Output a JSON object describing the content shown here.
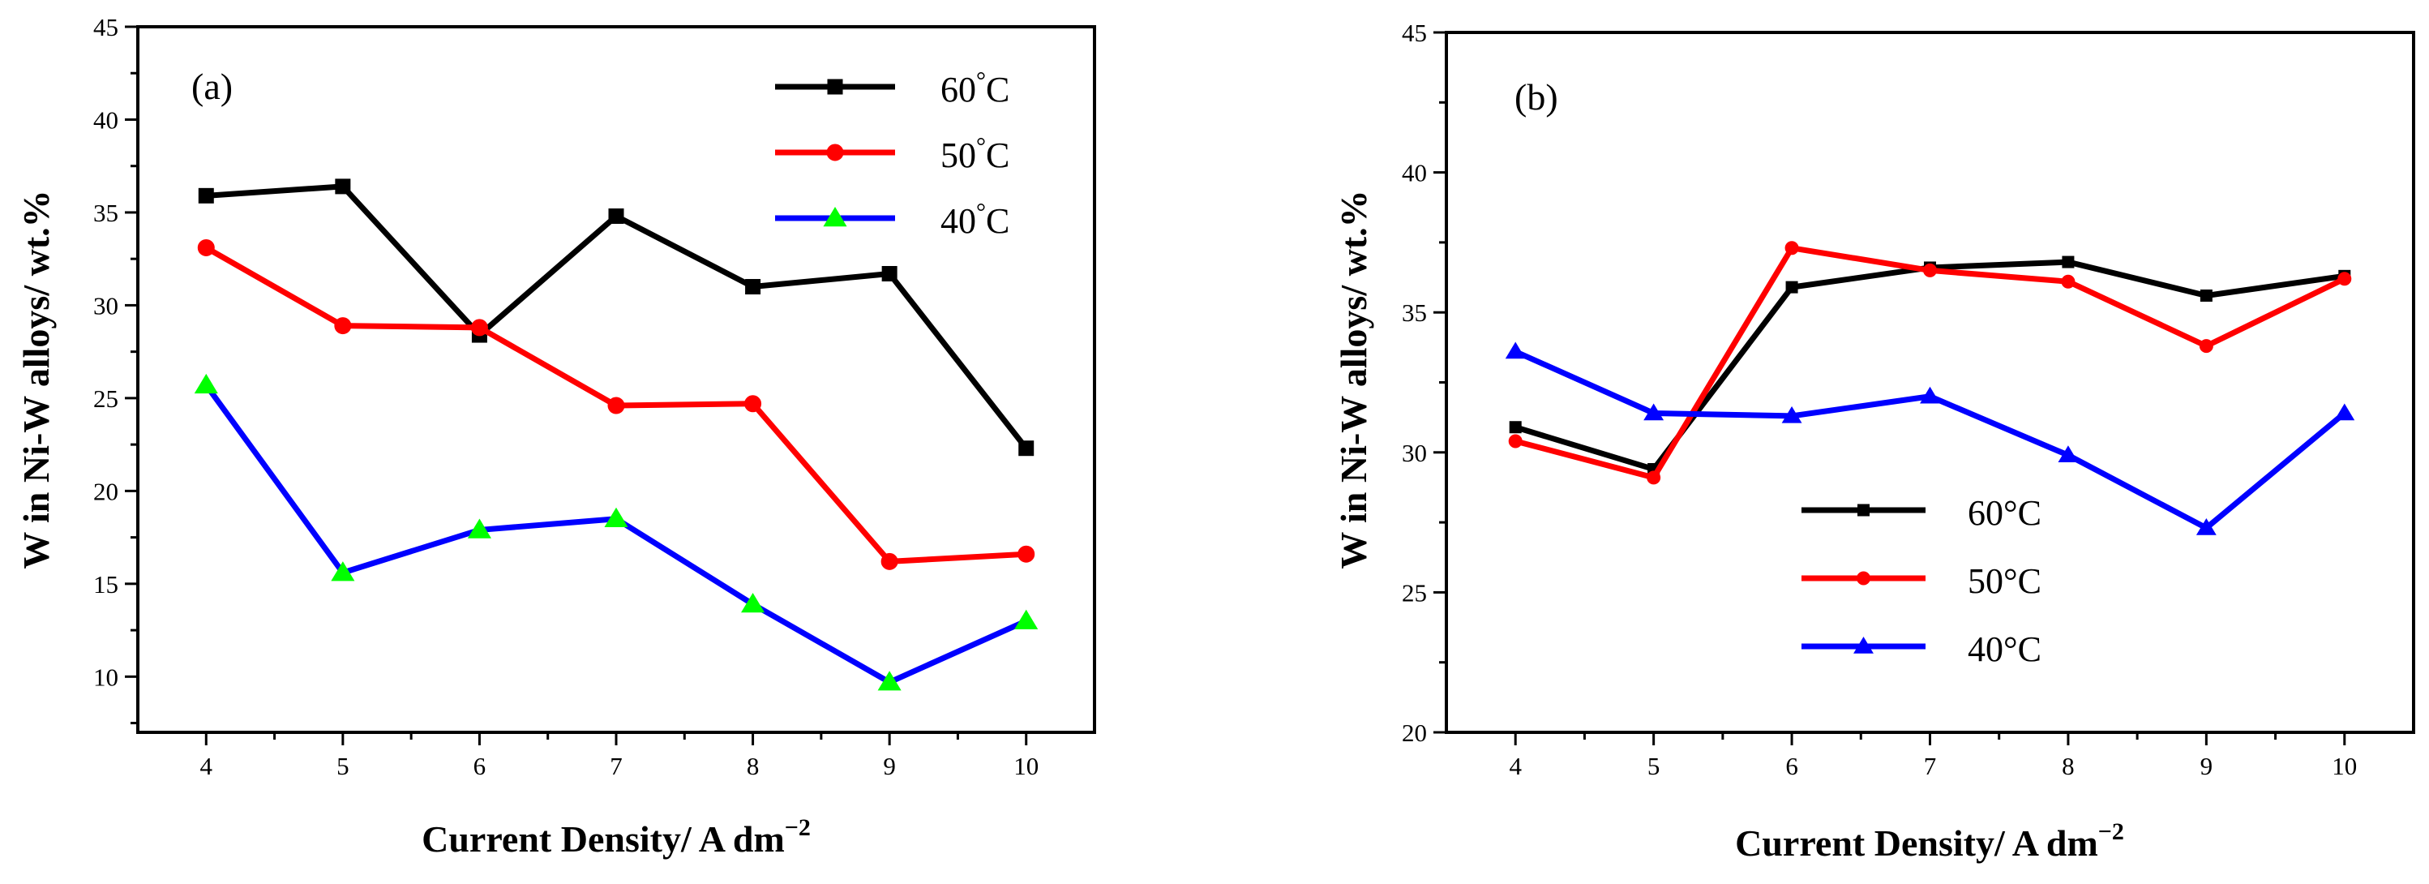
{
  "chart_data": [
    {
      "type": "line",
      "panel_label": "(a)",
      "xlabel": "Current Density/ A dm",
      "xlabel_sup": "−2",
      "ylabel": "W in Ni-W alloys/ wt.%",
      "xlim": [
        3.5,
        10.5
      ],
      "ylim": [
        7,
        45
      ],
      "x_ticks": [
        "4",
        "5",
        "6",
        "7",
        "8",
        "9",
        "10"
      ],
      "y_ticks": [
        "10",
        "15",
        "20",
        "25",
        "30",
        "35",
        "40",
        "45"
      ],
      "legend_position": "top-right",
      "x": [
        4,
        5,
        6,
        7,
        8,
        9,
        10
      ],
      "series": [
        {
          "name": "60",
          "unit": "°C",
          "color": "#000000",
          "marker": "square",
          "marker_fill": "#000000",
          "values": [
            35.9,
            36.4,
            28.4,
            34.8,
            31.0,
            31.7,
            22.3
          ]
        },
        {
          "name": "50",
          "unit": "°C",
          "color": "#ff0000",
          "marker": "circle",
          "marker_fill": "#ff0000",
          "values": [
            33.1,
            28.9,
            28.8,
            24.6,
            24.7,
            16.2,
            16.6
          ]
        },
        {
          "name": "40",
          "unit": "°C",
          "color": "#0000ff",
          "marker": "triangle",
          "marker_fill": "#00ff00",
          "values": [
            25.7,
            15.6,
            17.9,
            18.5,
            13.9,
            9.7,
            13.0
          ]
        }
      ]
    },
    {
      "type": "line",
      "panel_label": "(b)",
      "xlabel": "Current Density/ A dm",
      "xlabel_sup": "−2",
      "ylabel": "W in Ni-W alloys/ wt.%",
      "xlim": [
        3.5,
        10.5
      ],
      "ylim": [
        20,
        45
      ],
      "x_ticks": [
        "4",
        "5",
        "6",
        "7",
        "8",
        "9",
        "10"
      ],
      "y_ticks": [
        "20",
        "25",
        "30",
        "35",
        "40",
        "45"
      ],
      "legend_position": "bottom-center",
      "x": [
        4,
        5,
        6,
        7,
        8,
        9,
        10
      ],
      "series": [
        {
          "name": "60",
          "unit": "°C",
          "color": "#000000",
          "marker": "square",
          "marker_fill": "#000000",
          "values": [
            30.9,
            29.4,
            35.9,
            36.6,
            36.8,
            35.6,
            36.3
          ]
        },
        {
          "name": "50",
          "unit": "°C",
          "color": "#ff0000",
          "marker": "circle",
          "marker_fill": "#ff0000",
          "values": [
            30.4,
            29.1,
            37.3,
            36.5,
            36.1,
            33.8,
            36.2
          ]
        },
        {
          "name": "40",
          "unit": "°C",
          "color": "#0000ff",
          "marker": "triangle",
          "marker_fill": "#0000ff",
          "values": [
            33.6,
            31.4,
            31.3,
            32.0,
            29.9,
            27.3,
            31.4
          ]
        }
      ]
    }
  ]
}
